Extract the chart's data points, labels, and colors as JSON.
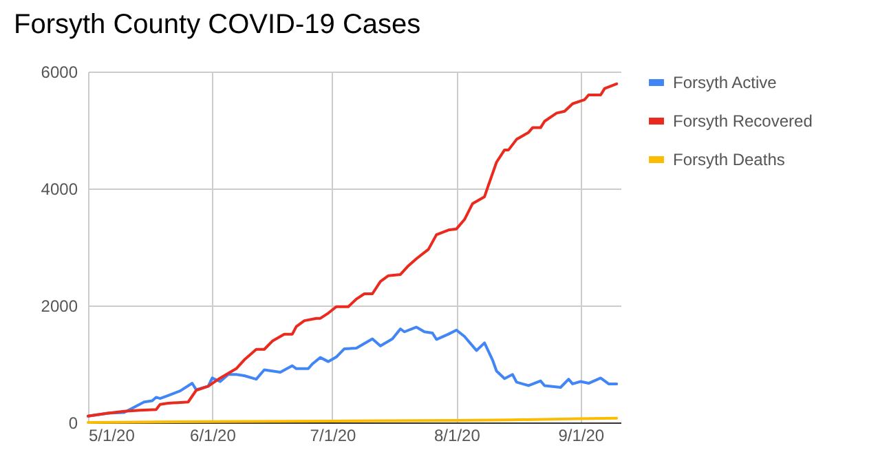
{
  "chart_data": {
    "type": "line",
    "title": "Forsyth County COVID-19 Cases",
    "legend": "right",
    "grid": true,
    "xlim": [
      "2020-05-01",
      "2020-09-11"
    ],
    "xticks": [
      {
        "value": "2020-05-01",
        "label": "5/1/20"
      },
      {
        "value": "2020-06-01",
        "label": "6/1/20"
      },
      {
        "value": "2020-07-01",
        "label": "7/1/20"
      },
      {
        "value": "2020-08-01",
        "label": "8/1/20"
      },
      {
        "value": "2020-09-01",
        "label": "9/1/20"
      }
    ],
    "ylim": [
      0,
      6000
    ],
    "yticks": [
      0,
      2000,
      4000,
      6000
    ],
    "series": [
      {
        "name": "Forsyth Active",
        "color": "#4285f4",
        "x": [
          "2020-05-01",
          "2020-05-06",
          "2020-05-10",
          "2020-05-15",
          "2020-05-17",
          "2020-05-18",
          "2020-05-19",
          "2020-05-21",
          "2020-05-24",
          "2020-05-27",
          "2020-05-28",
          "2020-05-31",
          "2020-06-01",
          "2020-06-03",
          "2020-06-05",
          "2020-06-07",
          "2020-06-09",
          "2020-06-12",
          "2020-06-14",
          "2020-06-16",
          "2020-06-18",
          "2020-06-21",
          "2020-06-22",
          "2020-06-25",
          "2020-06-26",
          "2020-06-28",
          "2020-06-30",
          "2020-07-02",
          "2020-07-04",
          "2020-07-07",
          "2020-07-09",
          "2020-07-11",
          "2020-07-13",
          "2020-07-16",
          "2020-07-18",
          "2020-07-19",
          "2020-07-22",
          "2020-07-24",
          "2020-07-26",
          "2020-07-27",
          "2020-07-30",
          "2020-08-01",
          "2020-08-03",
          "2020-08-05",
          "2020-08-06",
          "2020-08-08",
          "2020-08-10",
          "2020-08-11",
          "2020-08-13",
          "2020-08-15",
          "2020-08-16",
          "2020-08-19",
          "2020-08-22",
          "2020-08-23",
          "2020-08-27",
          "2020-08-29",
          "2020-08-30",
          "2020-09-01",
          "2020-09-03",
          "2020-09-06",
          "2020-09-08",
          "2020-09-10"
        ],
        "values": [
          110,
          160,
          170,
          350,
          370,
          430,
          410,
          460,
          540,
          670,
          560,
          620,
          760,
          700,
          820,
          820,
          800,
          740,
          900,
          880,
          860,
          970,
          920,
          920,
          1000,
          1110,
          1040,
          1120,
          1260,
          1270,
          1350,
          1430,
          1310,
          1430,
          1600,
          1550,
          1630,
          1550,
          1530,
          1420,
          1510,
          1580,
          1470,
          1310,
          1230,
          1360,
          1070,
          880,
          750,
          820,
          690,
          630,
          710,
          630,
          600,
          740,
          660,
          700,
          670,
          760,
          660,
          660
        ]
      },
      {
        "name": "Forsyth Recovered",
        "color": "#ea2a1e",
        "x": [
          "2020-05-01",
          "2020-05-06",
          "2020-05-10",
          "2020-05-14",
          "2020-05-18",
          "2020-05-19",
          "2020-05-21",
          "2020-05-26",
          "2020-05-28",
          "2020-05-31",
          "2020-06-03",
          "2020-06-07",
          "2020-06-09",
          "2020-06-12",
          "2020-06-14",
          "2020-06-16",
          "2020-06-19",
          "2020-06-21",
          "2020-06-22",
          "2020-06-24",
          "2020-06-27",
          "2020-06-28",
          "2020-06-30",
          "2020-07-02",
          "2020-07-05",
          "2020-07-07",
          "2020-07-09",
          "2020-07-11",
          "2020-07-13",
          "2020-07-15",
          "2020-07-18",
          "2020-07-20",
          "2020-07-22",
          "2020-07-25",
          "2020-07-27",
          "2020-07-30",
          "2020-08-01",
          "2020-08-03",
          "2020-08-05",
          "2020-08-08",
          "2020-08-09",
          "2020-08-11",
          "2020-08-13",
          "2020-08-14",
          "2020-08-16",
          "2020-08-19",
          "2020-08-20",
          "2020-08-22",
          "2020-08-23",
          "2020-08-26",
          "2020-08-28",
          "2020-08-30",
          "2020-09-02",
          "2020-09-03",
          "2020-09-06",
          "2020-09-07",
          "2020-09-10"
        ],
        "values": [
          110,
          160,
          190,
          210,
          220,
          310,
          330,
          350,
          550,
          620,
          760,
          920,
          1070,
          1250,
          1250,
          1390,
          1510,
          1510,
          1640,
          1740,
          1780,
          1780,
          1870,
          1980,
          1980,
          2110,
          2200,
          2200,
          2410,
          2510,
          2530,
          2680,
          2800,
          2960,
          3210,
          3290,
          3310,
          3470,
          3740,
          3860,
          4060,
          4450,
          4660,
          4660,
          4840,
          4960,
          5040,
          5040,
          5150,
          5290,
          5320,
          5450,
          5520,
          5600,
          5600,
          5710,
          5790
        ]
      },
      {
        "name": "Forsyth Deaths",
        "color": "#fbbc04",
        "x": [
          "2020-05-01",
          "2020-06-01",
          "2020-07-01",
          "2020-08-01",
          "2020-08-15",
          "2020-09-01",
          "2020-09-10"
        ],
        "values": [
          0,
          15,
          25,
          35,
          45,
          65,
          75
        ]
      }
    ]
  }
}
